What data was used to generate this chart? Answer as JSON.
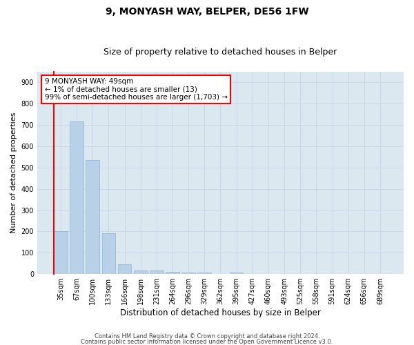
{
  "title1": "9, MONYASH WAY, BELPER, DE56 1FW",
  "title2": "Size of property relative to detached houses in Belper",
  "xlabel": "Distribution of detached houses by size in Belper",
  "ylabel": "Number of detached properties",
  "categories": [
    "35sqm",
    "67sqm",
    "100sqm",
    "133sqm",
    "166sqm",
    "198sqm",
    "231sqm",
    "264sqm",
    "296sqm",
    "329sqm",
    "362sqm",
    "395sqm",
    "427sqm",
    "460sqm",
    "493sqm",
    "525sqm",
    "558sqm",
    "591sqm",
    "624sqm",
    "656sqm",
    "689sqm"
  ],
  "values": [
    200,
    715,
    535,
    190,
    45,
    18,
    15,
    10,
    8,
    7,
    0,
    7,
    0,
    0,
    0,
    0,
    0,
    0,
    0,
    0,
    0
  ],
  "bar_color": "#b8d0e8",
  "bar_edgecolor": "#8ab4d4",
  "annotation_text_line1": "9 MONYASH WAY: 49sqm",
  "annotation_text_line2": "← 1% of detached houses are smaller (13)",
  "annotation_text_line3": "99% of semi-detached houses are larger (1,703) →",
  "annotation_boxcolor": "white",
  "annotation_edgecolor": "red",
  "ylim": [
    0,
    950
  ],
  "yticks": [
    0,
    100,
    200,
    300,
    400,
    500,
    600,
    700,
    800,
    900
  ],
  "grid_color": "#c8d8e8",
  "bg_color": "#dce8f0",
  "footer1": "Contains HM Land Registry data © Crown copyright and database right 2024.",
  "footer2": "Contains public sector information licensed under the Open Government Licence v3.0.",
  "title1_fontsize": 10,
  "title2_fontsize": 9,
  "xlabel_fontsize": 8.5,
  "ylabel_fontsize": 8,
  "tick_fontsize": 7,
  "annotation_fontsize": 7.5,
  "footer_fontsize": 6
}
